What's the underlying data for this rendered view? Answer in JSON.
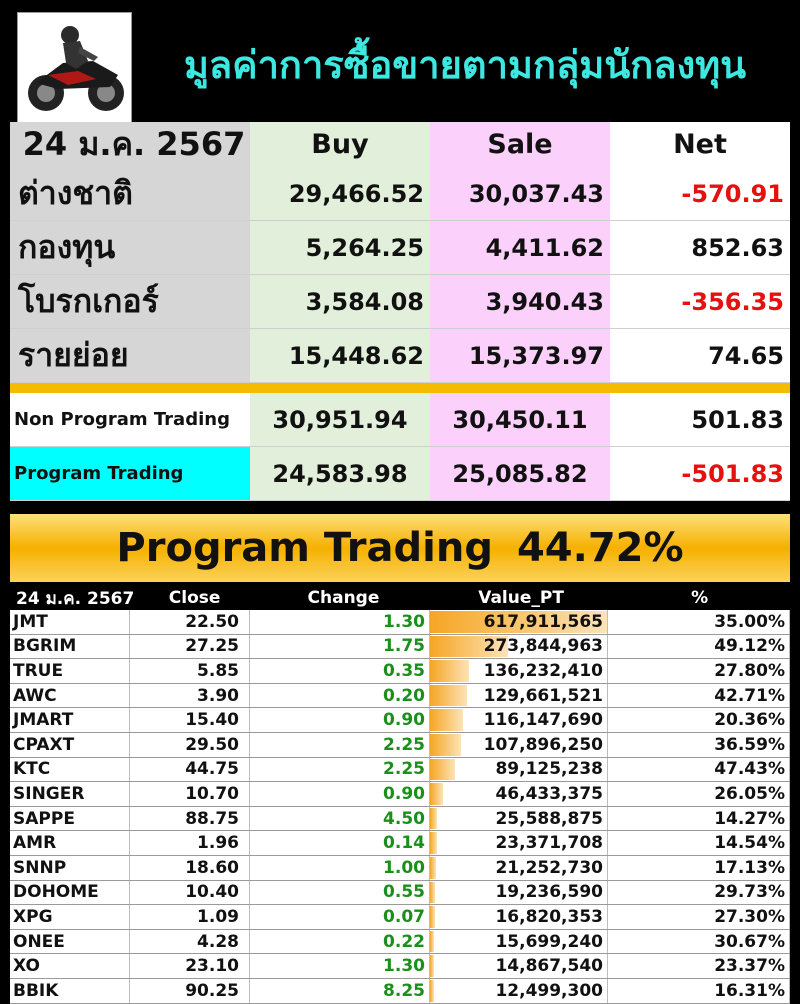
{
  "title": "มูลค่าการซื้อขายตามกลุ่มนักลงทุน",
  "summary": {
    "date": "24 ม.ค. 2567",
    "headers": {
      "buy": "Buy",
      "sale": "Sale",
      "net": "Net"
    },
    "rows": [
      {
        "label": "ต่างชาติ",
        "buy": "29,466.52",
        "sale": "30,037.43",
        "net": "-570.91",
        "negative": true
      },
      {
        "label": "กองทุน",
        "buy": "5,264.25",
        "sale": "4,411.62",
        "net": "852.63",
        "negative": false
      },
      {
        "label": "โบรกเกอร์",
        "buy": "3,584.08",
        "sale": "3,940.43",
        "net": "-356.35",
        "negative": true
      },
      {
        "label": "รายย่อย",
        "buy": "15,448.62",
        "sale": "15,373.97",
        "net": "74.65",
        "negative": false
      }
    ],
    "program_rows": [
      {
        "label": "Non Program Trading",
        "buy": "30,951.94",
        "sale": "30,450.11",
        "net": "501.83",
        "negative": false
      },
      {
        "label": "Program Trading",
        "buy": "24,583.98",
        "sale": "25,085.82",
        "net": "-501.83",
        "negative": true
      }
    ]
  },
  "banner": {
    "label": "Program Trading",
    "value": "44.72%"
  },
  "stocks": {
    "headers": {
      "date": "24 ม.ค. 2567",
      "close": "Close",
      "change": "Change",
      "value_pt": "Value_PT",
      "pct": "%"
    },
    "rows": [
      {
        "symbol": "JMT",
        "close": "22.50",
        "change": "1.30",
        "value_pt": "617,911,565",
        "pct": "35.00%",
        "bar": 1.0
      },
      {
        "symbol": "BGRIM",
        "close": "27.25",
        "change": "1.75",
        "value_pt": "273,844,963",
        "pct": "49.12%",
        "bar": 0.443
      },
      {
        "symbol": "TRUE",
        "close": "5.85",
        "change": "0.35",
        "value_pt": "136,232,410",
        "pct": "27.80%",
        "bar": 0.22
      },
      {
        "symbol": "AWC",
        "close": "3.90",
        "change": "0.20",
        "value_pt": "129,661,521",
        "pct": "42.71%",
        "bar": 0.21
      },
      {
        "symbol": "JMART",
        "close": "15.40",
        "change": "0.90",
        "value_pt": "116,147,690",
        "pct": "20.36%",
        "bar": 0.188
      },
      {
        "symbol": "CPAXT",
        "close": "29.50",
        "change": "2.25",
        "value_pt": "107,896,250",
        "pct": "36.59%",
        "bar": 0.175
      },
      {
        "symbol": "KTC",
        "close": "44.75",
        "change": "2.25",
        "value_pt": "89,125,238",
        "pct": "47.43%",
        "bar": 0.144
      },
      {
        "symbol": "SINGER",
        "close": "10.70",
        "change": "0.90",
        "value_pt": "46,433,375",
        "pct": "26.05%",
        "bar": 0.075
      },
      {
        "symbol": "SAPPE",
        "close": "88.75",
        "change": "4.50",
        "value_pt": "25,588,875",
        "pct": "14.27%",
        "bar": 0.041
      },
      {
        "symbol": "AMR",
        "close": "1.96",
        "change": "0.14",
        "value_pt": "23,371,708",
        "pct": "14.54%",
        "bar": 0.038
      },
      {
        "symbol": "SNNP",
        "close": "18.60",
        "change": "1.00",
        "value_pt": "21,252,730",
        "pct": "17.13%",
        "bar": 0.034
      },
      {
        "symbol": "DOHOME",
        "close": "10.40",
        "change": "0.55",
        "value_pt": "19,236,590",
        "pct": "29.73%",
        "bar": 0.031
      },
      {
        "symbol": "XPG",
        "close": "1.09",
        "change": "0.07",
        "value_pt": "16,820,353",
        "pct": "27.30%",
        "bar": 0.027
      },
      {
        "symbol": "ONEE",
        "close": "4.28",
        "change": "0.22",
        "value_pt": "15,699,240",
        "pct": "30.67%",
        "bar": 0.025
      },
      {
        "symbol": "XO",
        "close": "23.10",
        "change": "1.30",
        "value_pt": "14,867,540",
        "pct": "23.37%",
        "bar": 0.024
      },
      {
        "symbol": "BBIK",
        "close": "90.25",
        "change": "8.25",
        "value_pt": "12,499,300",
        "pct": "16.31%",
        "bar": 0.02
      }
    ]
  },
  "colors": {
    "title": "#3de8e0",
    "buy": "#1aa34a",
    "sale": "#ea1111",
    "negative": "#e61010",
    "change": "#1a8f1a",
    "banner": "#f6b000"
  },
  "icons": {
    "logo": "motorcycle-rider-icon"
  }
}
